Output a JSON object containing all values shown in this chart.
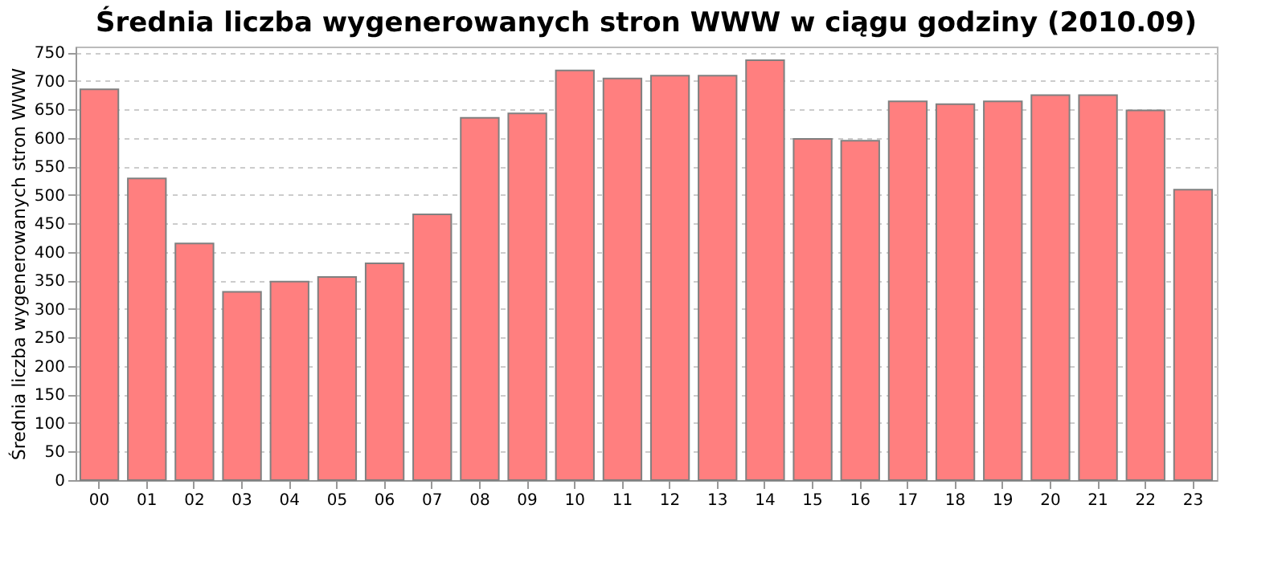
{
  "chart_data": {
    "type": "bar",
    "title": "Średnia liczba wygenerowanych stron WWW w ciągu godziny (2010.09)",
    "ylabel": "Średnia liczba wygenerowanych stron WWW",
    "categories": [
      "00",
      "01",
      "02",
      "03",
      "04",
      "05",
      "06",
      "07",
      "08",
      "09",
      "10",
      "11",
      "12",
      "13",
      "14",
      "15",
      "16",
      "17",
      "18",
      "19",
      "20",
      "21",
      "22",
      "23"
    ],
    "values": [
      685,
      529,
      415,
      330,
      348,
      356,
      380,
      466,
      635,
      643,
      718,
      704,
      709,
      709,
      736,
      598,
      595,
      664,
      659,
      664,
      675,
      675,
      648,
      509
    ],
    "color": "#ff7f7f",
    "ylim": [
      0,
      760
    ],
    "yticks": [
      0,
      50,
      100,
      150,
      200,
      250,
      300,
      350,
      400,
      450,
      500,
      550,
      600,
      650,
      700,
      750
    ],
    "grid": "y"
  }
}
